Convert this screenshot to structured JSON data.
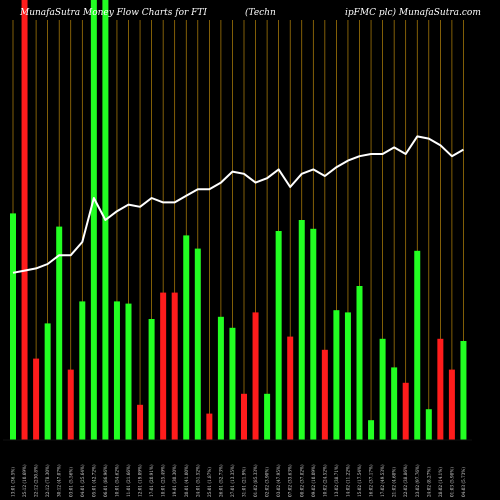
{
  "header": {
    "left": "MunafaSutra  Money Flow  Charts for FTI",
    "center": "(Techn",
    "right": "ipFMC plc) MunafaSutra.com"
  },
  "chart_data": {
    "type": "bar",
    "title": "MunafaSutra Money Flow Charts for FTI (TechnipFMC plc) MunafaSutra.com",
    "ylim": [
      0,
      100
    ],
    "grid": {
      "vertical": true,
      "color": "#b8860b"
    },
    "series": [
      {
        "name": "Money flow",
        "type": "bar",
        "values": [
          51.5,
          100,
          18.5,
          26.5,
          48.5,
          16,
          31.5,
          100,
          100,
          31.5,
          31,
          8,
          27.5,
          33.5,
          33.5,
          46.5,
          43.5,
          6,
          28,
          25.5,
          10.5,
          29,
          10.5,
          47.5,
          23.5,
          50,
          48,
          20.5,
          29.5,
          29,
          35,
          4.5,
          23,
          16.5,
          13,
          43,
          7,
          23,
          16,
          22.5
        ],
        "colors": [
          "g",
          "r",
          "r",
          "g",
          "g",
          "r",
          "g",
          "g",
          "g",
          "g",
          "g",
          "r",
          "g",
          "r",
          "r",
          "g",
          "g",
          "r",
          "g",
          "g",
          "r",
          "r",
          "g",
          "g",
          "r",
          "g",
          "g",
          "r",
          "g",
          "g",
          "g",
          "g",
          "g",
          "g",
          "r",
          "g",
          "g",
          "r",
          "r",
          "g"
        ]
      },
      {
        "name": "Price",
        "type": "line",
        "values": [
          38,
          38.5,
          39,
          40,
          42,
          42,
          45,
          55,
          50,
          52,
          53.5,
          53,
          55,
          54,
          54,
          55.5,
          57,
          57,
          58.5,
          61,
          60.5,
          58.5,
          59.5,
          61.5,
          57.5,
          60.5,
          61.5,
          60,
          62,
          63.5,
          64.5,
          65,
          65,
          66.5,
          65,
          69,
          68.5,
          67,
          64.5,
          66
        ]
      }
    ],
    "colors": {
      "g": "#22ff22",
      "r": "#ff1c1c",
      "line": "#ffffff"
    },
    "x_tick_labels": [
      "13:01 (36.5%)",
      "25:12 (10.69%)",
      "22:12 (230.8%)",
      "22:12 (78.30%)",
      "30:12 (47.07%)",
      "03:01 (5.56%)",
      "04:01 (25.64%)",
      "05:01 (42.72%)",
      "06:01 (86.96%)",
      "10:01 (54.62%)",
      "11:01 (21.66%)",
      "12:01 (19.09%)",
      "17:01 (20.91%)",
      "18:01 (25.49%)",
      "19:01 (30.30%)",
      "20:01 (41.00%)",
      "24:01 (51.52%)",
      "25:01 (1.87%)",
      "26:01 (52.73%)",
      "27:01 (13.35%)",
      "31:01 (21.9%)",
      "01:02 (85.33%)",
      "02:02 (3.90%)",
      "03:02 (47.95%)",
      "07:02 (33.63%)",
      "08:02 (37.82%)",
      "09:02 (10.09%)",
      "10:02 (24.52%)",
      "13:02 (38.71%)",
      "14:02 (11.22%)",
      "15:02 (17.54%)",
      "16:02 (37.17%)",
      "17:02 (49.53%)",
      "21:02 (4.68%)",
      "22:02 (38.86%)",
      "23:02 (97.76%)",
      "24:02 (8.27%)",
      "28:02 (14.1%)",
      "01:03 (5.98%)",
      "04:03 (5.73%)"
    ]
  }
}
